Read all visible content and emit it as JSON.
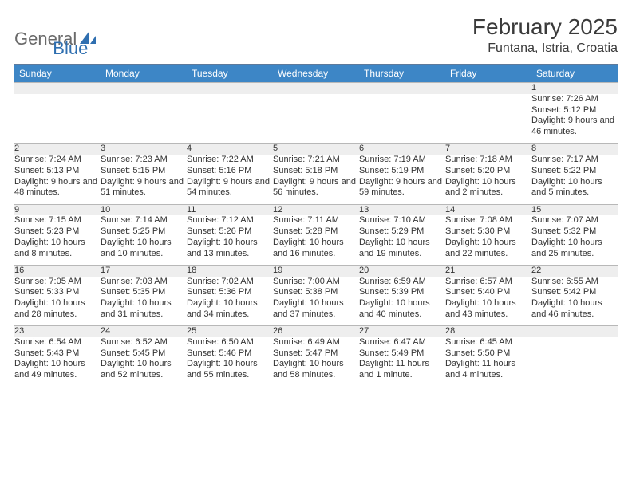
{
  "brand": {
    "part1": "General",
    "part2": "Blue"
  },
  "title": "February 2025",
  "location": "Funtana, Istria, Croatia",
  "colors": {
    "header_bg": "#3d86c6",
    "header_text": "#ffffff",
    "daynum_bg": "#eeeeee",
    "rule": "#5e7a9b",
    "text": "#333333",
    "logo_gray": "#6a6a6a",
    "logo_blue": "#2f6fb0"
  },
  "weekdays": [
    "Sunday",
    "Monday",
    "Tuesday",
    "Wednesday",
    "Thursday",
    "Friday",
    "Saturday"
  ],
  "weeks": [
    [
      null,
      null,
      null,
      null,
      null,
      null,
      {
        "n": "1",
        "sr": "7:26 AM",
        "ss": "5:12 PM",
        "dl": "9 hours and 46 minutes."
      }
    ],
    [
      {
        "n": "2",
        "sr": "7:24 AM",
        "ss": "5:13 PM",
        "dl": "9 hours and 48 minutes."
      },
      {
        "n": "3",
        "sr": "7:23 AM",
        "ss": "5:15 PM",
        "dl": "9 hours and 51 minutes."
      },
      {
        "n": "4",
        "sr": "7:22 AM",
        "ss": "5:16 PM",
        "dl": "9 hours and 54 minutes."
      },
      {
        "n": "5",
        "sr": "7:21 AM",
        "ss": "5:18 PM",
        "dl": "9 hours and 56 minutes."
      },
      {
        "n": "6",
        "sr": "7:19 AM",
        "ss": "5:19 PM",
        "dl": "9 hours and 59 minutes."
      },
      {
        "n": "7",
        "sr": "7:18 AM",
        "ss": "5:20 PM",
        "dl": "10 hours and 2 minutes."
      },
      {
        "n": "8",
        "sr": "7:17 AM",
        "ss": "5:22 PM",
        "dl": "10 hours and 5 minutes."
      }
    ],
    [
      {
        "n": "9",
        "sr": "7:15 AM",
        "ss": "5:23 PM",
        "dl": "10 hours and 8 minutes."
      },
      {
        "n": "10",
        "sr": "7:14 AM",
        "ss": "5:25 PM",
        "dl": "10 hours and 10 minutes."
      },
      {
        "n": "11",
        "sr": "7:12 AM",
        "ss": "5:26 PM",
        "dl": "10 hours and 13 minutes."
      },
      {
        "n": "12",
        "sr": "7:11 AM",
        "ss": "5:28 PM",
        "dl": "10 hours and 16 minutes."
      },
      {
        "n": "13",
        "sr": "7:10 AM",
        "ss": "5:29 PM",
        "dl": "10 hours and 19 minutes."
      },
      {
        "n": "14",
        "sr": "7:08 AM",
        "ss": "5:30 PM",
        "dl": "10 hours and 22 minutes."
      },
      {
        "n": "15",
        "sr": "7:07 AM",
        "ss": "5:32 PM",
        "dl": "10 hours and 25 minutes."
      }
    ],
    [
      {
        "n": "16",
        "sr": "7:05 AM",
        "ss": "5:33 PM",
        "dl": "10 hours and 28 minutes."
      },
      {
        "n": "17",
        "sr": "7:03 AM",
        "ss": "5:35 PM",
        "dl": "10 hours and 31 minutes."
      },
      {
        "n": "18",
        "sr": "7:02 AM",
        "ss": "5:36 PM",
        "dl": "10 hours and 34 minutes."
      },
      {
        "n": "19",
        "sr": "7:00 AM",
        "ss": "5:38 PM",
        "dl": "10 hours and 37 minutes."
      },
      {
        "n": "20",
        "sr": "6:59 AM",
        "ss": "5:39 PM",
        "dl": "10 hours and 40 minutes."
      },
      {
        "n": "21",
        "sr": "6:57 AM",
        "ss": "5:40 PM",
        "dl": "10 hours and 43 minutes."
      },
      {
        "n": "22",
        "sr": "6:55 AM",
        "ss": "5:42 PM",
        "dl": "10 hours and 46 minutes."
      }
    ],
    [
      {
        "n": "23",
        "sr": "6:54 AM",
        "ss": "5:43 PM",
        "dl": "10 hours and 49 minutes."
      },
      {
        "n": "24",
        "sr": "6:52 AM",
        "ss": "5:45 PM",
        "dl": "10 hours and 52 minutes."
      },
      {
        "n": "25",
        "sr": "6:50 AM",
        "ss": "5:46 PM",
        "dl": "10 hours and 55 minutes."
      },
      {
        "n": "26",
        "sr": "6:49 AM",
        "ss": "5:47 PM",
        "dl": "10 hours and 58 minutes."
      },
      {
        "n": "27",
        "sr": "6:47 AM",
        "ss": "5:49 PM",
        "dl": "11 hours and 1 minute."
      },
      {
        "n": "28",
        "sr": "6:45 AM",
        "ss": "5:50 PM",
        "dl": "11 hours and 4 minutes."
      },
      null
    ]
  ],
  "labels": {
    "sunrise": "Sunrise:",
    "sunset": "Sunset:",
    "daylight": "Daylight:"
  }
}
